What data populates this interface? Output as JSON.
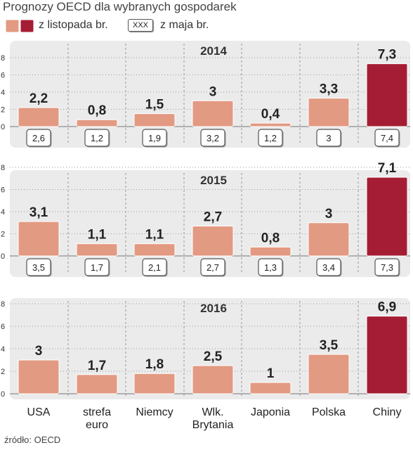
{
  "title": "Prognozy OECD dla wybranych gospodarek",
  "legend": {
    "november_label": "z listopada br.",
    "may_box_text": "XXX",
    "may_label": "z maja br."
  },
  "source": "źródło: OECD",
  "colors": {
    "bar": "#e39a82",
    "bar_highlight": "#a51d34",
    "panel_bg": "#ebebeb",
    "grid": "#9a9a9a"
  },
  "chart_data": {
    "type": "bar",
    "title": "Prognozy OECD dla wybranych gospodarek",
    "categories": [
      "USA",
      "strefa euro",
      "Niemcy",
      "Wlk. Brytania",
      "Japonia",
      "Polska",
      "Chiny"
    ],
    "category_lines": [
      [
        "USA"
      ],
      [
        "strefa",
        "euro"
      ],
      [
        "Niemcy"
      ],
      [
        "Wlk.",
        "Brytania"
      ],
      [
        "Japonia"
      ],
      [
        "Polska"
      ],
      [
        "Chiny"
      ]
    ],
    "highlight_category": "Chiny",
    "y_ticks": [
      "0",
      "2",
      "4",
      "6",
      "8"
    ],
    "ylim": [
      0,
      8
    ],
    "grid": true,
    "panels": [
      {
        "year": "2014",
        "series": [
          {
            "name": "z listopada br.",
            "values": [
              2.2,
              0.8,
              1.5,
              3,
              0.4,
              3.3,
              7.3
            ],
            "labels": [
              "2,2",
              "0,8",
              "1,5",
              "3",
              "0,4",
              "3,3",
              "7,3"
            ]
          },
          {
            "name": "z maja br.",
            "values": [
              2.6,
              1.2,
              1.9,
              3.2,
              1.2,
              3,
              7.4
            ],
            "labels": [
              "2,6",
              "1,2",
              "1,9",
              "3,2",
              "1,2",
              "3",
              "7,4"
            ]
          }
        ]
      },
      {
        "year": "2015",
        "series": [
          {
            "name": "z listopada br.",
            "values": [
              3.1,
              1.1,
              1.1,
              2.7,
              0.8,
              3,
              7.1
            ],
            "labels": [
              "3,1",
              "1,1",
              "1,1",
              "2,7",
              "0,8",
              "3",
              "7,1"
            ]
          },
          {
            "name": "z maja br.",
            "values": [
              3.5,
              1.7,
              2.1,
              2.7,
              1.3,
              3.4,
              7.3
            ],
            "labels": [
              "3,5",
              "1,7",
              "2,1",
              "2,7",
              "1,3",
              "3,4",
              "7,3"
            ]
          }
        ]
      },
      {
        "year": "2016",
        "series": [
          {
            "name": "z listopada br.",
            "values": [
              3,
              1.7,
              1.8,
              2.5,
              1,
              3.5,
              6.9
            ],
            "labels": [
              "3",
              "1,7",
              "1,8",
              "2,5",
              "1",
              "3,5",
              "6,9"
            ]
          }
        ]
      }
    ]
  }
}
